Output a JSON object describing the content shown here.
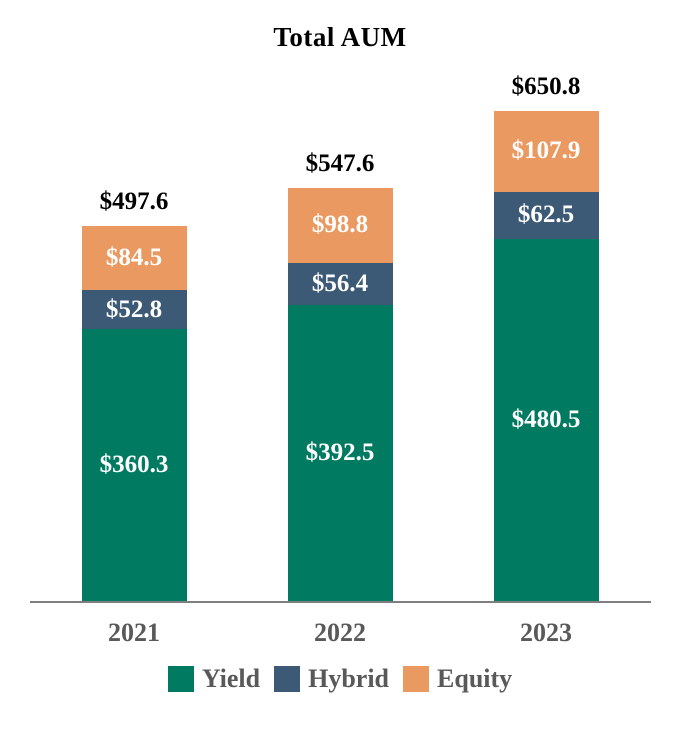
{
  "page": {
    "background_color": "#FFFFFF"
  },
  "chart_data": {
    "type": "bar",
    "stacked": true,
    "title": "Total AUM",
    "categories": [
      "2021",
      "2022",
      "2023"
    ],
    "series": [
      {
        "name": "Yield",
        "color": "#007B61",
        "values": [
          360.3,
          392.5,
          480.5
        ],
        "value_labels": [
          "$360.3",
          "$392.5",
          "$480.5"
        ]
      },
      {
        "name": "Hybrid",
        "color": "#3C5A75",
        "values": [
          52.8,
          56.4,
          62.5
        ],
        "value_labels": [
          "$52.8",
          "$56.4",
          "$62.5"
        ]
      },
      {
        "name": "Equity",
        "color": "#EA9A61",
        "values": [
          84.5,
          98.8,
          107.9
        ],
        "value_labels": [
          "$84.5",
          "$98.8",
          "$107.9"
        ]
      }
    ],
    "totals": [
      497.6,
      547.6,
      650.8
    ],
    "total_labels": [
      "$497.6",
      "$547.6",
      "$650.8"
    ],
    "legend_position": "bottom",
    "grid": false,
    "axis_line_color": "#7F7F7F",
    "category_label_color": "#595959",
    "legend_label_color": "#595959",
    "segment_label_color": "#FFFFFF",
    "total_label_color": "#000000",
    "title_color": "#000000"
  }
}
